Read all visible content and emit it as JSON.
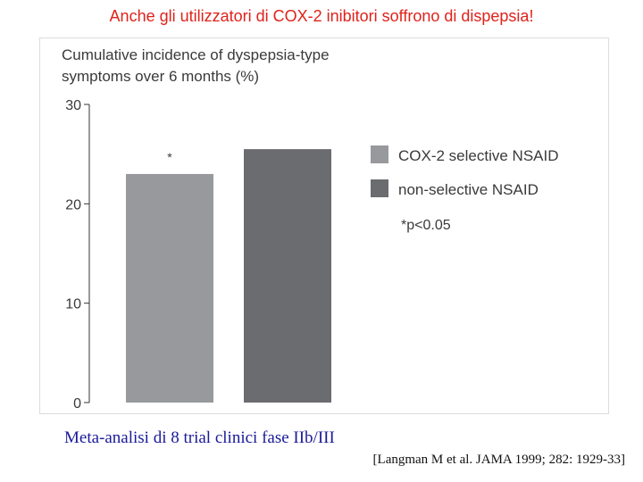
{
  "slide": {
    "title": "Anche gli utilizzatori di COX-2 inibitori soffrono di dispepsia!",
    "caption": "Meta-analisi di 8 trial clinici fase IIb/III",
    "citation": "[Langman M et al. JAMA 1999; 282: 1929-33]"
  },
  "colors": {
    "title": "#e0221b",
    "caption": "#1a1a99",
    "bar_cox2": "#98999d",
    "bar_nonselective": "#6b6c70",
    "axis": "#333333"
  },
  "chart_data": {
    "type": "bar",
    "title": "Cumulative incidence of dyspepsia-type",
    "subtitle": "symptoms over 6 months (%)",
    "xlabel": "",
    "ylabel": "",
    "ylim": [
      0,
      30
    ],
    "yticks": [
      0,
      10,
      20,
      30
    ],
    "grid": false,
    "legend_position": "right",
    "categories": [
      "COX-2 selective NSAID",
      "non-selective NSAID"
    ],
    "values": [
      23,
      25.5
    ],
    "bar_annotations": [
      "*",
      ""
    ],
    "series": [
      {
        "name": "COX-2 selective NSAID",
        "value": 23,
        "color": "#98999d"
      },
      {
        "name": "non-selective NSAID",
        "value": 25.5,
        "color": "#6b6c70"
      }
    ],
    "legend_note": "*p<0.05"
  }
}
